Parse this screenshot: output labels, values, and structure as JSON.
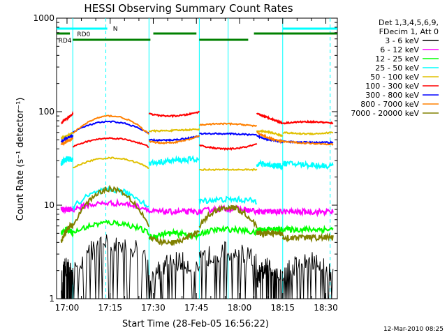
{
  "chart_data": {
    "type": "line",
    "title": "HESSI Observing Summary Count Rates",
    "xlabel": "Start Time (28-Feb-05 16:56:22)",
    "ylabel": "Count Rate (s⁻¹ detector⁻¹)",
    "y_scale": "log",
    "ylim": [
      1,
      1000
    ],
    "y_ticks": [
      1,
      10,
      100,
      1000
    ],
    "y_tick_labels": [
      "1",
      "10",
      "100",
      "1000"
    ],
    "xlim": [
      "16:56:22",
      "18:34:00"
    ],
    "x_ticks": [
      "17:00",
      "17:15",
      "17:30",
      "17:45",
      "18:00",
      "18:15",
      "18:30"
    ],
    "x_tick_labels": [
      "17:00",
      "17:15",
      "17:30",
      "17:45",
      "18:00",
      "18:15",
      "18:30"
    ],
    "timestamp": "12-Mar-2010 08:25",
    "legend_header": [
      "Det 1,3,4,5,6,9,",
      "FDecim 1, Att 0"
    ],
    "legend_position": "right",
    "flag_labels": [
      "N",
      "RD0",
      "RD4"
    ],
    "flag_colors": {
      "N": "#00ffff",
      "RD0": "#008000",
      "RD4": "#008000"
    },
    "flag_intervals": {
      "N": [
        [
          "16:56:22",
          "17:14:00"
        ],
        [
          "18:15:00",
          "18:34:00"
        ]
      ],
      "RD0": [
        [
          "16:56:22",
          "17:01:00"
        ],
        [
          "17:30:00",
          "17:45:00"
        ],
        [
          "18:05:00",
          "18:34:00"
        ]
      ],
      "RD4": [
        [
          "17:02:00",
          "17:29:00"
        ],
        [
          "17:46:00",
          "18:03:00"
        ]
      ]
    },
    "vertical_lines": {
      "solid_cyan": [
        "17:02:00",
        "17:28:30",
        "17:46:00",
        "17:56:00",
        "18:15:00"
      ],
      "dashed_cyan": [
        "17:13:30",
        "18:31:30"
      ]
    },
    "day_night_segments": [
      [
        "16:58:00",
        "17:02:00"
      ],
      [
        "17:02:00",
        "17:28:30"
      ],
      [
        "17:28:30",
        "17:46:00"
      ],
      [
        "17:46:00",
        "18:06:00"
      ],
      [
        "18:06:00",
        "18:15:00"
      ],
      [
        "18:15:00",
        "18:32:30"
      ]
    ],
    "series": [
      {
        "name": "3 - 6 keV",
        "color": "#000000",
        "segment_values": [
          [
            1.5,
            2.2,
            1.5
          ],
          [
            2.0,
            4.0,
            2.5
          ],
          [
            1.5,
            2.5,
            1.8
          ],
          [
            2.5,
            3.2,
            2.5
          ],
          [
            1.6,
            2.2,
            1.7
          ],
          [
            1.8,
            2.5,
            1.8
          ]
        ]
      },
      {
        "name": "6 - 12 keV",
        "color": "#ff00ff",
        "segment_values": [
          [
            9.0,
            9.0,
            9.0
          ],
          [
            9.0,
            10.5,
            9.0
          ],
          [
            8.5,
            8.5,
            8.5
          ],
          [
            8.5,
            9.2,
            8.5
          ],
          [
            8.5,
            8.5,
            8.5
          ],
          [
            8.5,
            8.5,
            8.5
          ]
        ]
      },
      {
        "name": "12 - 25 keV",
        "color": "#00ff00",
        "segment_values": [
          [
            5.0,
            5.5,
            5.0
          ],
          [
            5.0,
            6.5,
            5.0
          ],
          [
            4.5,
            5.0,
            4.5
          ],
          [
            5.0,
            5.5,
            5.0
          ],
          [
            5.5,
            5.5,
            5.5
          ],
          [
            5.5,
            5.5,
            5.5
          ]
        ]
      },
      {
        "name": "25 - 50 keV",
        "color": "#00ffff",
        "segment_values": [
          [
            28,
            31,
            30
          ],
          [
            9.5,
            14.5,
            9.5
          ],
          [
            28,
            30,
            31
          ],
          [
            11,
            11.5,
            11
          ],
          [
            28,
            27,
            26
          ],
          [
            28,
            27,
            26
          ]
        ]
      },
      {
        "name": "50 - 100 keV",
        "color": "#e0c000",
        "segment_values": [
          [
            52,
            55,
            60
          ],
          [
            25,
            32,
            25
          ],
          [
            62,
            63,
            65
          ],
          [
            24,
            24,
            24
          ],
          [
            62,
            60,
            55
          ],
          [
            60,
            58,
            60
          ]
        ]
      },
      {
        "name": "100 - 300 keV",
        "color": "#ff0000",
        "segment_values": [
          [
            75,
            85,
            95
          ],
          [
            42,
            52,
            42
          ],
          [
            95,
            90,
            100
          ],
          [
            44,
            40,
            45
          ],
          [
            95,
            85,
            75
          ],
          [
            75,
            78,
            75
          ]
        ]
      },
      {
        "name": "300 - 800 keV",
        "color": "#0000ff",
        "segment_values": [
          [
            48,
            52,
            55
          ],
          [
            60,
            78,
            58
          ],
          [
            50,
            50,
            55
          ],
          [
            58,
            58,
            56
          ],
          [
            55,
            50,
            48
          ],
          [
            48,
            47,
            47
          ]
        ]
      },
      {
        "name": "800 - 7000 keV",
        "color": "#ff8000",
        "segment_values": [
          [
            45,
            48,
            52
          ],
          [
            58,
            90,
            57
          ],
          [
            48,
            47,
            55
          ],
          [
            72,
            74,
            70
          ],
          [
            60,
            52,
            48
          ],
          [
            48,
            46,
            45
          ]
        ]
      },
      {
        "name": "7000 - 20000 keV",
        "color": "#808000",
        "segment_values": [
          [
            4.0,
            5.5,
            6.0
          ],
          [
            6.0,
            15.0,
            6.0
          ],
          [
            4.5,
            4.0,
            5.5
          ],
          [
            6.0,
            9.5,
            6.0
          ],
          [
            5.0,
            5.0,
            5.0
          ],
          [
            4.5,
            4.5,
            4.5
          ]
        ]
      }
    ]
  }
}
